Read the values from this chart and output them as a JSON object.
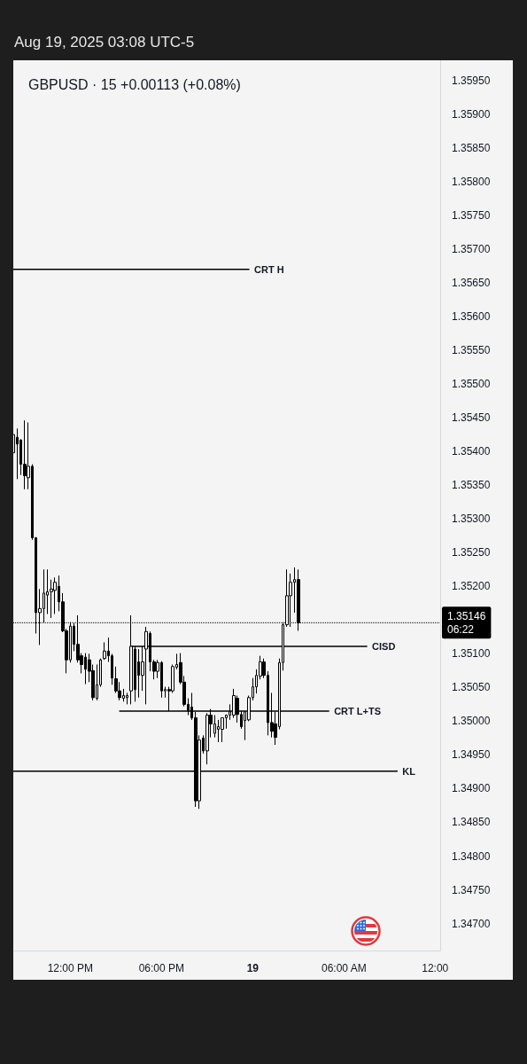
{
  "chart_data": {
    "type": "candlestick",
    "title": "GBPUSD · 15 +0.00113 (+0.08%)",
    "annotations": [
      "Aug 19, 2025 03:08 UTC-5"
    ],
    "x": [
      "2025-08-18T08:15",
      "2025-08-18T08:30",
      "2025-08-18T08:45",
      "2025-08-18T09:00",
      "2025-08-18T09:15",
      "2025-08-18T09:30",
      "2025-08-18T09:45",
      "2025-08-18T10:00",
      "2025-08-18T10:15",
      "2025-08-18T10:30",
      "2025-08-18T10:45",
      "2025-08-18T11:00",
      "2025-08-18T11:15",
      "2025-08-18T11:30",
      "2025-08-18T11:45",
      "2025-08-18T12:00",
      "2025-08-18T12:15",
      "2025-08-18T12:30",
      "2025-08-18T12:45",
      "2025-08-18T13:00",
      "2025-08-18T13:15",
      "2025-08-18T13:30",
      "2025-08-18T13:45",
      "2025-08-18T14:00",
      "2025-08-18T14:15",
      "2025-08-18T14:30",
      "2025-08-18T14:45",
      "2025-08-18T15:00",
      "2025-08-18T15:15",
      "2025-08-18T15:30",
      "2025-08-18T15:45",
      "2025-08-18T16:00",
      "2025-08-18T16:15",
      "2025-08-18T16:30",
      "2025-08-18T16:45",
      "2025-08-18T17:00",
      "2025-08-18T17:15",
      "2025-08-18T17:30",
      "2025-08-18T17:45",
      "2025-08-18T18:00",
      "2025-08-18T18:15",
      "2025-08-18T18:30",
      "2025-08-18T18:45",
      "2025-08-18T19:00",
      "2025-08-18T19:15",
      "2025-08-18T19:30",
      "2025-08-18T19:45",
      "2025-08-18T20:00",
      "2025-08-18T20:15",
      "2025-08-18T20:30",
      "2025-08-18T20:45",
      "2025-08-18T21:00",
      "2025-08-18T21:15",
      "2025-08-18T21:30",
      "2025-08-18T21:45",
      "2025-08-18T22:00",
      "2025-08-18T22:15",
      "2025-08-18T22:30",
      "2025-08-18T22:45",
      "2025-08-18T23:00",
      "2025-08-18T23:15",
      "2025-08-18T23:30",
      "2025-08-18T23:45",
      "2025-08-19T00:00",
      "2025-08-19T00:15",
      "2025-08-19T00:30",
      "2025-08-19T00:45",
      "2025-08-19T01:00",
      "2025-08-19T01:15",
      "2025-08-19T01:30",
      "2025-08-19T01:45",
      "2025-08-19T02:00",
      "2025-08-19T02:15",
      "2025-08-19T02:30",
      "2025-08-19T02:45",
      "2025-08-19T03:00"
    ],
    "ohlc": [
      [
        1.35398,
        1.35451,
        1.35377,
        1.35425
      ],
      [
        1.35421,
        1.35434,
        1.35359,
        1.35411
      ],
      [
        1.35417,
        1.35418,
        1.35365,
        1.35381
      ],
      [
        1.35381,
        1.35446,
        1.35344,
        1.35364
      ],
      [
        1.35361,
        1.35443,
        1.35344,
        1.35378
      ],
      [
        1.35378,
        1.35381,
        1.35269,
        1.35272
      ],
      [
        1.35272,
        1.35273,
        1.3513,
        1.35161
      ],
      [
        1.35161,
        1.35196,
        1.35113,
        1.35167
      ],
      [
        1.35167,
        1.35225,
        1.35146,
        1.3519
      ],
      [
        1.35187,
        1.35225,
        1.35159,
        1.35192
      ],
      [
        1.35192,
        1.3521,
        1.35153,
        1.35196
      ],
      [
        1.35194,
        1.35213,
        1.35159,
        1.35206
      ],
      [
        1.352,
        1.35216,
        1.35163,
        1.35177
      ],
      [
        1.35177,
        1.3519,
        1.35132,
        1.35134
      ],
      [
        1.35134,
        1.35137,
        1.35071,
        1.35091
      ],
      [
        1.35091,
        1.35147,
        1.35087,
        1.35141
      ],
      [
        1.35141,
        1.35146,
        1.35104,
        1.35114
      ],
      [
        1.35114,
        1.35157,
        1.35087,
        1.35091
      ],
      [
        1.35097,
        1.35101,
        1.35071,
        1.35084
      ],
      [
        1.35095,
        1.35101,
        1.35055,
        1.35077
      ],
      [
        1.35091,
        1.351,
        1.35058,
        1.35074
      ],
      [
        1.35075,
        1.35084,
        1.35031,
        1.35035
      ],
      [
        1.35034,
        1.35084,
        1.35031,
        1.35054
      ],
      [
        1.35054,
        1.35093,
        1.35051,
        1.35091
      ],
      [
        1.35093,
        1.35117,
        1.35091,
        1.35104
      ],
      [
        1.35104,
        1.35124,
        1.35088,
        1.35097
      ],
      [
        1.35097,
        1.351,
        1.35054,
        1.35064
      ],
      [
        1.35063,
        1.35081,
        1.35042,
        1.35045
      ],
      [
        1.35045,
        1.35058,
        1.35031,
        1.35035
      ],
      [
        1.35034,
        1.35048,
        1.35029,
        1.35038
      ],
      [
        1.35035,
        1.35042,
        1.35025,
        1.35038
      ],
      [
        1.35045,
        1.35157,
        1.35025,
        1.35111
      ],
      [
        1.35107,
        1.35111,
        1.35029,
        1.35047
      ],
      [
        1.35088,
        1.35107,
        1.35035,
        1.35068
      ],
      [
        1.35068,
        1.35111,
        1.35045,
        1.35088
      ],
      [
        1.35107,
        1.3514,
        1.35025,
        1.35133
      ],
      [
        1.3513,
        1.35133,
        1.35074,
        1.35088
      ],
      [
        1.35088,
        1.35091,
        1.35062,
        1.35074
      ],
      [
        1.35074,
        1.35091,
        1.35064,
        1.35087
      ],
      [
        1.35087,
        1.35089,
        1.35035,
        1.35045
      ],
      [
        1.35045,
        1.35051,
        1.35035,
        1.35047
      ],
      [
        1.35047,
        1.35051,
        1.35015,
        1.35045
      ],
      [
        1.35045,
        1.35084,
        1.35042,
        1.35081
      ],
      [
        1.3508,
        1.351,
        1.35077,
        1.35084
      ],
      [
        1.35087,
        1.35101,
        1.35055,
        1.35058
      ],
      [
        1.35058,
        1.35067,
        1.35022,
        1.35025
      ],
      [
        1.35025,
        1.35034,
        1.35009,
        1.35015
      ],
      [
        1.35021,
        1.35042,
        1.35002,
        1.35005
      ],
      [
        1.35005,
        1.35014,
        1.34873,
        1.34882
      ],
      [
        1.34882,
        1.34979,
        1.3487,
        1.34972
      ],
      [
        1.34975,
        1.34979,
        1.34952,
        1.34956
      ],
      [
        1.34956,
        1.35012,
        1.34936,
        1.35009
      ],
      [
        1.35009,
        1.35018,
        1.34976,
        1.34996
      ],
      [
        1.34982,
        1.35009,
        1.34976,
        1.34996
      ],
      [
        1.34988,
        1.35002,
        1.34969,
        1.34992
      ],
      [
        1.34988,
        1.35005,
        1.34969,
        1.35005
      ],
      [
        1.35005,
        1.3501,
        1.34989,
        1.35009
      ],
      [
        1.35009,
        1.35025,
        1.35002,
        1.35014
      ],
      [
        1.35009,
        1.35048,
        1.35005,
        1.35038
      ],
      [
        1.35034,
        1.35038,
        1.34998,
        1.3501
      ],
      [
        1.3501,
        1.35015,
        1.34989,
        1.34992
      ],
      [
        1.35001,
        1.35015,
        1.34972,
        1.35014
      ],
      [
        1.35002,
        1.35038,
        1.35,
        1.35035
      ],
      [
        1.35035,
        1.35064,
        1.35031,
        1.35051
      ],
      [
        1.35051,
        1.35077,
        1.35041,
        1.35068
      ],
      [
        1.35067,
        1.35097,
        1.35062,
        1.35088
      ],
      [
        1.35088,
        1.35093,
        1.35064,
        1.35068
      ],
      [
        1.35068,
        1.35074,
        1.34979,
        1.34998
      ],
      [
        1.34998,
        1.35042,
        1.34976,
        1.34985
      ],
      [
        1.34996,
        1.35014,
        1.34965,
        1.34976
      ],
      [
        1.34992,
        1.35093,
        1.34988,
        1.35087
      ],
      [
        1.35087,
        1.35147,
        1.35075,
        1.35143
      ],
      [
        1.35143,
        1.35225,
        1.3514,
        1.35186
      ],
      [
        1.35186,
        1.35219,
        1.3514,
        1.35206
      ],
      [
        1.35206,
        1.35228,
        1.35161,
        1.3521
      ],
      [
        1.3521,
        1.35225,
        1.35134,
        1.35146
      ]
    ],
    "color": "#000000",
    "series": [
      {
        "type": "line",
        "name": "CRT H",
        "color": "#000000",
        "x": [
          "2025-08-18T08:15",
          "2025-08-18T23:45"
        ],
        "values": [
          1.3567,
          1.3567
        ]
      },
      {
        "type": "line",
        "name": "CISD",
        "color": "#000000",
        "x": [
          "2025-08-18T16:00",
          "2025-08-19T07:30"
        ],
        "values": [
          1.35111,
          1.35111
        ]
      },
      {
        "type": "line",
        "name": "CRT L+TS",
        "color": "#000000",
        "x": [
          "2025-08-18T15:15",
          "2025-08-19T05:00"
        ],
        "values": [
          1.35015,
          1.35015
        ]
      },
      {
        "type": "line",
        "name": "KL",
        "color": "#000000",
        "x": [
          "2025-08-18T08:15",
          "2025-08-19T09:30"
        ],
        "values": [
          1.34926,
          1.34926
        ]
      }
    ],
    "xlim": [
      "2025-08-18T08:15",
      "2025-08-19T12:20"
    ],
    "xticks": [
      {
        "value": "2025-08-18T12:00",
        "label": "12:00 PM"
      },
      {
        "value": "2025-08-18T18:00",
        "label": "06:00 PM"
      },
      {
        "value": "2025-08-19T00:00",
        "label": "19"
      },
      {
        "value": "2025-08-19T06:00",
        "label": "06:00 AM"
      },
      {
        "value": "2025-08-19T12:00",
        "label": "12:00"
      }
    ],
    "ylim": [
      1.3466,
      1.3598
    ],
    "yticks": [
      {
        "value": 1.347,
        "label": "1.34700"
      },
      {
        "value": 1.3475,
        "label": "1.34750"
      },
      {
        "value": 1.348,
        "label": "1.34800"
      },
      {
        "value": 1.3485,
        "label": "1.34850"
      },
      {
        "value": 1.349,
        "label": "1.34900"
      },
      {
        "value": 1.3495,
        "label": "1.34950"
      },
      {
        "value": 1.35,
        "label": "1.35000"
      },
      {
        "value": 1.3505,
        "label": "1.35050"
      },
      {
        "value": 1.351,
        "label": "1.35100"
      },
      {
        "value": 1.352,
        "label": "1.35200"
      },
      {
        "value": 1.3525,
        "label": "1.35250"
      },
      {
        "value": 1.353,
        "label": "1.35300"
      },
      {
        "value": 1.3535,
        "label": "1.35350"
      },
      {
        "value": 1.354,
        "label": "1.35400"
      },
      {
        "value": 1.3545,
        "label": "1.35450"
      },
      {
        "value": 1.355,
        "label": "1.35500"
      },
      {
        "value": 1.3555,
        "label": "1.35550"
      },
      {
        "value": 1.356,
        "label": "1.35600"
      },
      {
        "value": 1.3565,
        "label": "1.35650"
      },
      {
        "value": 1.357,
        "label": "1.35700"
      },
      {
        "value": 1.3575,
        "label": "1.35750"
      },
      {
        "value": 1.358,
        "label": "1.35800"
      },
      {
        "value": 1.3585,
        "label": "1.35850"
      },
      {
        "value": 1.359,
        "label": "1.35900"
      },
      {
        "value": 1.3595,
        "label": "1.35950"
      }
    ],
    "ref_lines": [
      {
        "axis": "y",
        "value": 1.35146,
        "label": "1.35146\n06:22",
        "color": "#000000",
        "line_style": "dotted"
      }
    ]
  }
}
